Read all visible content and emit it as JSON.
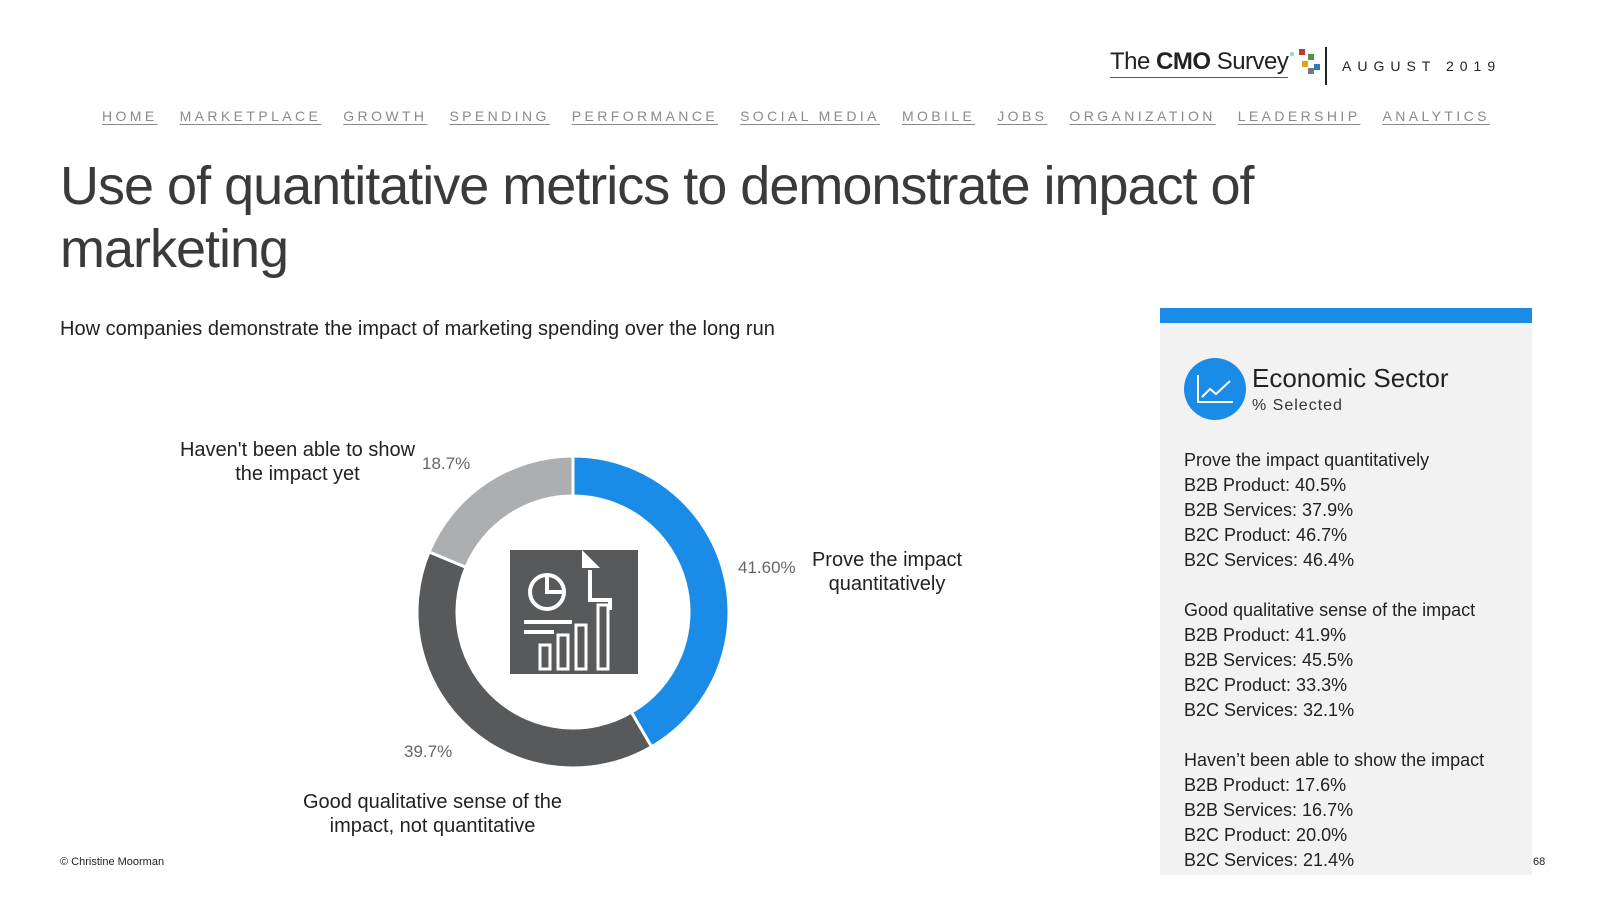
{
  "logo": {
    "prefix": "The",
    "brand": "CMO",
    "suffix": "Survey"
  },
  "date": "AUGUST 2019",
  "nav": [
    "HOME",
    "MARKETPLACE",
    "GROWTH",
    "SPENDING",
    "PERFORMANCE",
    "SOCIAL MEDIA",
    "MOBILE",
    "JOBS",
    "ORGANIZATION",
    "LEADERSHIP",
    "ANALYTICS"
  ],
  "title": "Use of quantitative metrics to demonstrate impact of marketing",
  "subtitle": "How companies demonstrate the impact of marketing spending over the long run",
  "chart_data": {
    "type": "pie",
    "style": "donut",
    "slices": [
      {
        "label_line1": "Prove the impact",
        "label_line2": "quantitatively",
        "value": 41.6,
        "pct_label": "41.60%",
        "color": "#1a8ce8"
      },
      {
        "label_line1": "Good qualitative sense of the",
        "label_line2": "impact, not quantitative",
        "value": 39.7,
        "pct_label": "39.7%",
        "color": "#58595b"
      },
      {
        "label_line1": "Haven't been able to show",
        "label_line2": "the impact yet",
        "value": 18.7,
        "pct_label": "18.7%",
        "color": "#adaeb0"
      }
    ],
    "center_icon": "report-chart-icon"
  },
  "panel": {
    "title": "Economic Sector",
    "subtitle": "% Selected",
    "icon": "line-chart-icon",
    "groups": [
      {
        "heading": "Prove the impact quantitatively",
        "rows": [
          "B2B Product: 40.5%",
          "B2B Services: 37.9%",
          "B2C Product: 46.7%",
          "B2C Services: 46.4%"
        ]
      },
      {
        "heading": "Good qualitative sense of the impact",
        "rows": [
          "B2B Product: 41.9%",
          "B2B Services: 45.5%",
          "B2C Product: 33.3%",
          "B2C Services: 32.1%"
        ]
      },
      {
        "heading": "Haven’t been able to show the impact",
        "rows": [
          "B2B Product: 17.6%",
          "B2B Services: 16.7%",
          "B2C Product: 20.0%",
          "B2C Services: 21.4%"
        ]
      }
    ]
  },
  "footer": "© Christine Moorman",
  "page_number": "68",
  "colors": {
    "accent": "#1a8ce8",
    "dark": "#58595b",
    "light": "#adaeb0"
  }
}
